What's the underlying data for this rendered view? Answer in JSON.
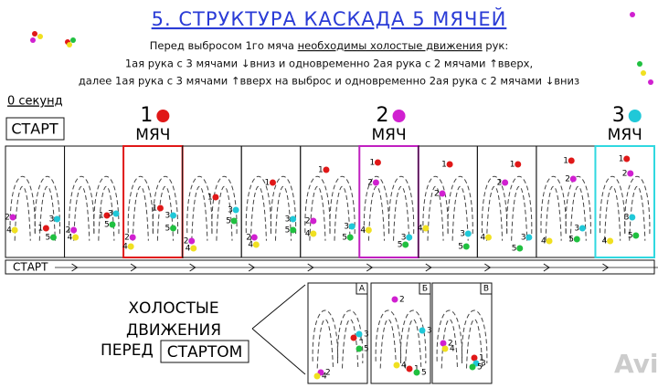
{
  "header": {
    "title": "5. СТРУКТУРА КАСКАДА 5 МЯЧЕЙ",
    "line1_a": "Перед выбросом 1го мяча",
    "line1_u": "необходимы холостые движения",
    "line1_b": "рук:",
    "line2": "1ая рука с 3 мячами ↓вниз и одновременно 2ая рука с 2 мячами ↑вверх,",
    "line3": "далее 1ая рука с 3 мячами ↑вверх на выброс и одновременно 2ая рука с 2 мячами ↓вниз"
  },
  "timeline": {
    "seconds": "0 секунд",
    "start": "СТАРТ",
    "strip_start": "СТАРТ",
    "markers": [
      {
        "number": "1",
        "word": "МЯЧ"
      },
      {
        "number": "2",
        "word": "МЯЧ"
      },
      {
        "number": "3",
        "word": "МЯЧ"
      }
    ],
    "frames": [
      [
        "1",
        "2",
        "3",
        "4",
        "5"
      ],
      [
        "1",
        "2",
        "3",
        "4",
        "5"
      ],
      [
        "1",
        "2",
        "3",
        "4",
        "5"
      ],
      [
        "1",
        "2",
        "3",
        "4",
        "5"
      ],
      [
        "1",
        "2",
        "3",
        "4",
        "5"
      ],
      [
        "1",
        "2",
        "3",
        "4",
        "5"
      ],
      [
        "1",
        "2",
        "3",
        "4",
        "5"
      ],
      [
        "1",
        "2",
        "3",
        "4",
        "5"
      ],
      [
        "1",
        "2",
        "3",
        "4",
        "5"
      ],
      [
        "1",
        "2",
        "3",
        "4",
        "5"
      ],
      [
        "1",
        "2",
        "3",
        "4",
        "5"
      ]
    ]
  },
  "prestart": {
    "lines": [
      "ХОЛОСТЫЕ",
      "ДВИЖЕНИЯ",
      "ПЕРЕД"
    ],
    "boxed": "СТАРТОМ",
    "panels": [
      {
        "tag": "А",
        "balls": [
          "1",
          "2",
          "3",
          "4",
          "5"
        ]
      },
      {
        "tag": "Б",
        "balls": [
          "1",
          "2",
          "3",
          "4",
          "5"
        ]
      },
      {
        "tag": "В",
        "balls": [
          "1",
          "2",
          "3",
          "4",
          "5"
        ]
      }
    ]
  },
  "watermark": "Avito"
}
